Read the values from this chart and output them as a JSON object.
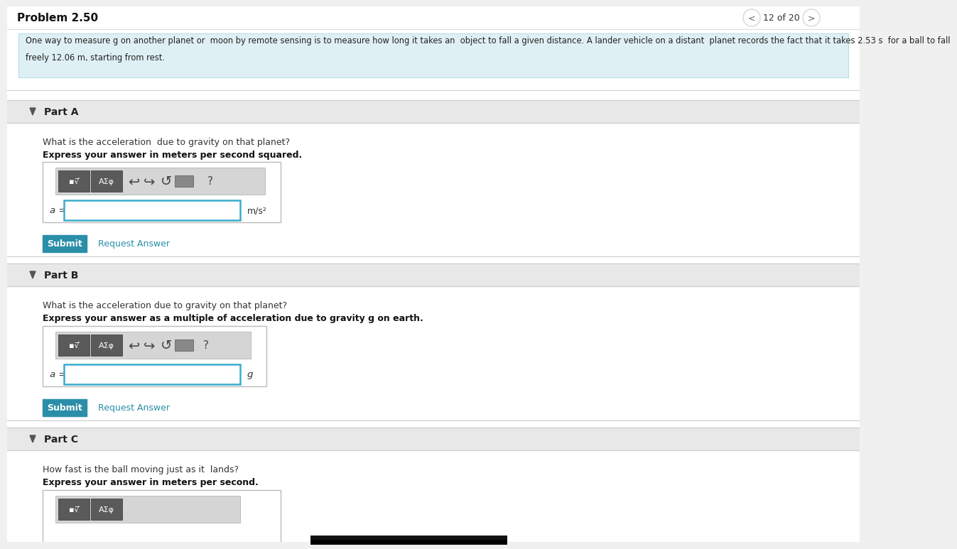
{
  "title": "Problem 2.50",
  "page_info": "12 of 20",
  "bg_color": "#f0f0f0",
  "white": "#ffffff",
  "prob_box_color": "#dff0f5",
  "prob_text_line1": "One way to measure g on another planet or  moon by remote sensing is to measure how long it takes an  object to fall a given distance. A lander vehicle on a distant  planet records the fact that it takes 2.53 s  for a ball to fall",
  "prob_text_line2": "freely 12.06 m, starting from rest.",
  "part_a_header": "Part A",
  "part_a_q": "What is the acceleration  due to gravity on that planet?",
  "part_a_bold": "Express your answer in meters per second squared.",
  "part_a_label": "a =",
  "part_a_unit": "m/s²",
  "part_b_header": "Part B",
  "part_b_q": "What is the acceleration due to gravity on that planet?",
  "part_b_bold": "Express your answer as a multiple of acceleration due to gravity g on earth.",
  "part_b_label": "a =",
  "part_b_unit": "g",
  "part_c_header": "Part C",
  "part_c_q": "How fast is the ball moving just as it  lands?",
  "part_c_bold": "Express your answer in meters per second.",
  "submit_color": "#2b8ea8",
  "submit_text": "Submit",
  "request_text": "Request Answer",
  "request_color": "#2b8ea8",
  "toolbar_bg": "#d5d5d5",
  "input_border": "#3aaccc",
  "section_header_bg": "#e8e8e8",
  "section_line_color": "#cccccc",
  "btn_color": "#666666",
  "icon_color": "#444444",
  "title_color": "#111111",
  "text_color": "#333333",
  "nav_circle_color": "#dddddd"
}
